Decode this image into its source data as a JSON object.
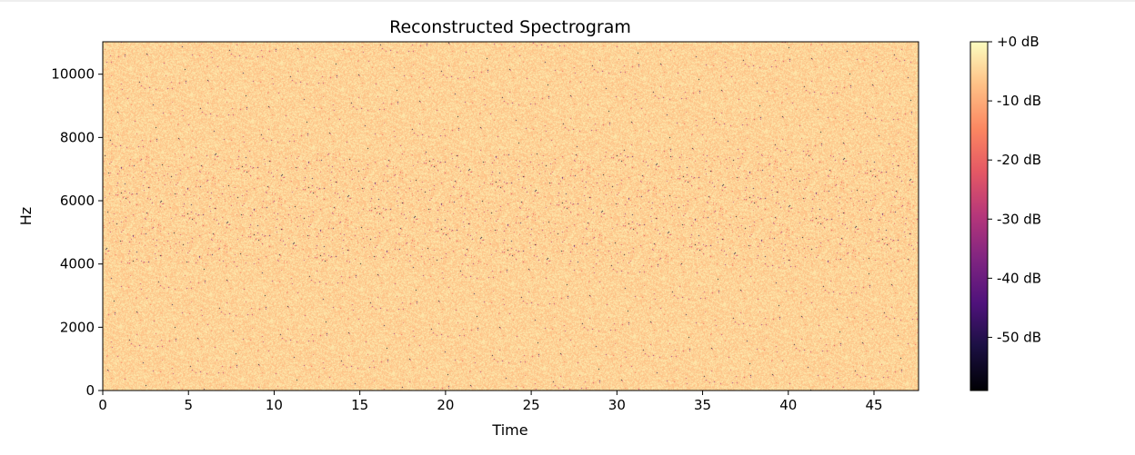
{
  "chart_data": {
    "type": "heatmap",
    "title": "Reconstructed Spectrogram",
    "xlabel": "Time",
    "ylabel": "Hz",
    "xlim": [
      0,
      47.6
    ],
    "ylim": [
      0,
      11025
    ],
    "xticks": [
      0,
      5,
      10,
      15,
      20,
      25,
      30,
      35,
      40,
      45
    ],
    "yticks": [
      0,
      2000,
      4000,
      6000,
      8000,
      10000
    ],
    "colormap": "magma",
    "colorbar": {
      "range_db": [
        -59,
        0
      ],
      "ticks": [
        0,
        -10,
        -20,
        -30,
        -40,
        -50
      ],
      "tick_labels": [
        "+0 dB",
        "-10 dB",
        "-20 dB",
        "-30 dB",
        "-40 dB",
        "-50 dB"
      ],
      "position": "right"
    },
    "values_summary": {
      "typical_db": -5,
      "spread_db": 3,
      "speckle_band_hz": [
        4000,
        7500
      ],
      "min_db": -59
    },
    "grid": false,
    "colors": {
      "dominant": "#fde0a5"
    }
  }
}
